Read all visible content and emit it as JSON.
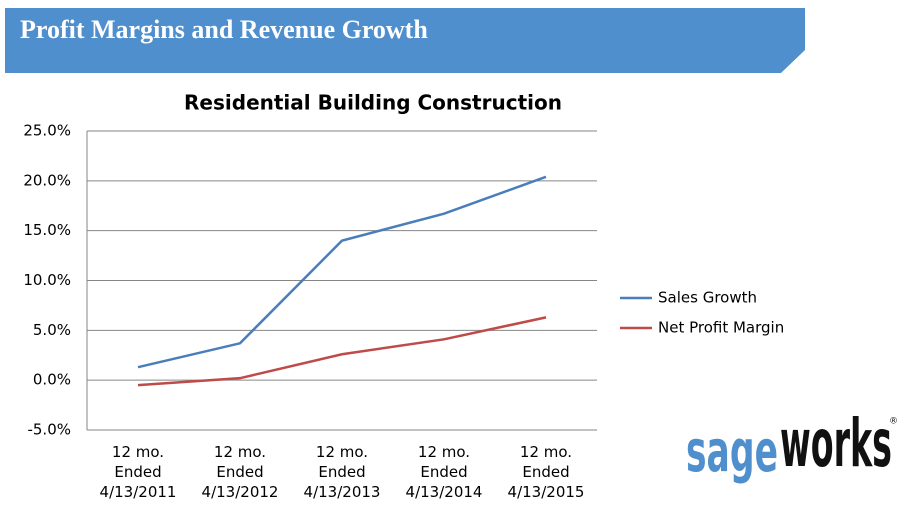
{
  "header": {
    "title": "Profit Margins and Revenue Growth"
  },
  "logo": {
    "part1": "sage",
    "part2": "works",
    "mark": "®"
  },
  "chart_data": {
    "type": "line",
    "title": "Residential Building Construction",
    "categories": [
      "12 mo.\nEnded\n4/13/2011",
      "12 mo.\nEnded\n4/13/2012",
      "12 mo.\nEnded\n4/13/2013",
      "12 mo.\nEnded\n4/13/2014",
      "12 mo.\nEnded\n4/13/2015"
    ],
    "series": [
      {
        "name": "Sales Growth",
        "color": "#4a7ebb",
        "values": [
          1.3,
          3.7,
          14.0,
          16.7,
          20.4
        ]
      },
      {
        "name": "Net Profit Margin",
        "color": "#be4b48",
        "values": [
          -0.5,
          0.2,
          2.6,
          4.1,
          6.3
        ]
      }
    ],
    "ylim": [
      -5,
      25
    ],
    "yticks": [
      {
        "value": -5,
        "label": "-5.0%"
      },
      {
        "value": 0,
        "label": "0.0%"
      },
      {
        "value": 5,
        "label": "5.0%"
      },
      {
        "value": 10,
        "label": "10.0%"
      },
      {
        "value": 15,
        "label": "15.0%"
      },
      {
        "value": 20,
        "label": "20.0%"
      },
      {
        "value": 25,
        "label": "25.0%"
      }
    ],
    "grid": true,
    "legend": "right"
  }
}
